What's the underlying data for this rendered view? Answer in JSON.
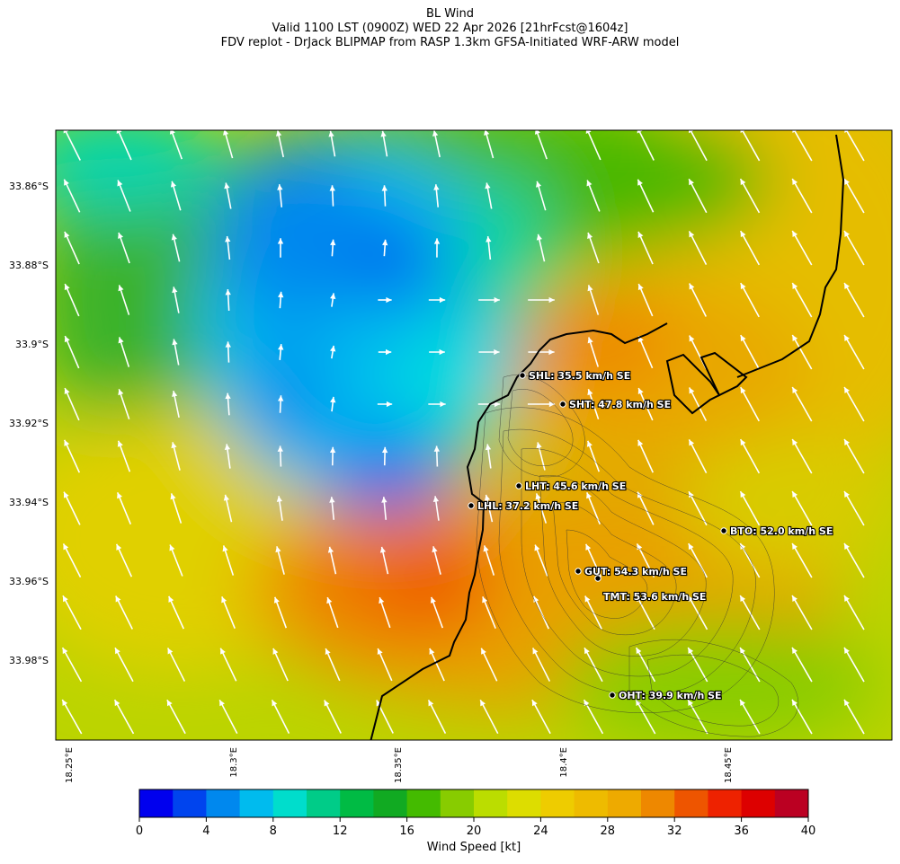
{
  "title": {
    "line1": "BL Wind",
    "line2": "Valid 1100 LST (0900Z) WED 22 Apr 2026 [21hrFcst@1604z]",
    "line3": "FDV replot - DrJack BLIPMAP from RASP 1.3km GFSA-Initiated WRF-ARW model"
  },
  "axes": {
    "lat_labels": [
      "33.86°S",
      "33.88°S",
      "33.9°S",
      "33.92°S",
      "33.94°S",
      "33.96°S",
      "33.98°S"
    ],
    "lon_labels": [
      "18.25°E",
      "18.3°E",
      "18.35°E",
      "18.4°E",
      "18.45°E"
    ]
  },
  "stations": [
    {
      "label": "SHL: 35.5 km/h SE"
    },
    {
      "label": "SHT: 47.8 km/h SE"
    },
    {
      "label": "LHT: 45.6 km/h SE"
    },
    {
      "label": "LHL: 37.2 km/h SE"
    },
    {
      "label": "BTO: 52.0 km/h SE"
    },
    {
      "label": "GUT: 54.3 km/h SE"
    },
    {
      "label": "TMT: 53.6 km/h SE"
    },
    {
      "label": "OHT: 39.9 km/h SE"
    }
  ],
  "colorbar": {
    "title": "Wind Speed [kt]",
    "ticks": [
      "0",
      "4",
      "8",
      "12",
      "16",
      "20",
      "24",
      "28",
      "32",
      "36",
      "40"
    ],
    "colors": [
      "#0000ee",
      "#0044ee",
      "#0088ee",
      "#00bbee",
      "#00ddcc",
      "#00cc88",
      "#00bb44",
      "#11aa22",
      "#44bb00",
      "#88cc00",
      "#bbdd00",
      "#dddd00",
      "#eecc00",
      "#eebb00",
      "#eeaa00",
      "#ee8800",
      "#ee5500",
      "#ee2200",
      "#dd0000",
      "#bb0022"
    ]
  },
  "colors": {
    "arrow": "#ffffff",
    "coast": "#000000"
  }
}
